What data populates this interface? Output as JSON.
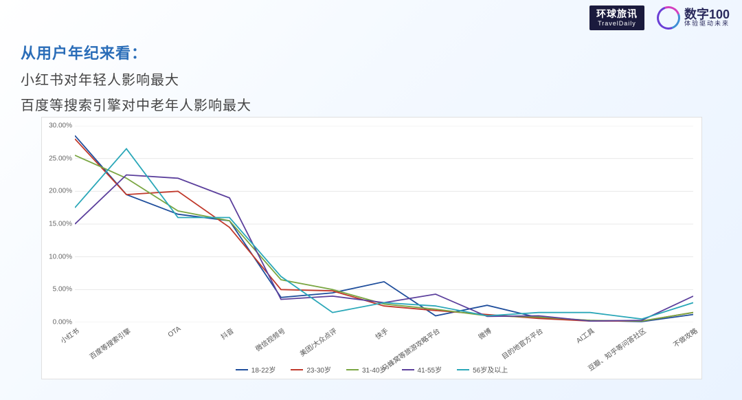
{
  "logos": {
    "traveldaily_cn": "环球旅讯",
    "traveldaily_en": "TravelDaily",
    "digital100_big": "数字100",
    "digital100_small": "体验驱动未来"
  },
  "headline": {
    "line1": "从用户年纪来看：",
    "line2": "小红书对年轻人影响最大",
    "line3": "百度等搜索引擎对中老年人影响最大"
  },
  "chart": {
    "type": "line",
    "background_color": "#ffffff",
    "border_color": "#e0e0e0",
    "grid_color": "#e8e8e8",
    "tick_fontsize": 10,
    "tick_color": "#666666",
    "line_width": 1.8,
    "ylim": [
      0,
      30
    ],
    "ytick_step": 5,
    "ytick_format": "0.00%",
    "yticks": [
      "0.00%",
      "5.00%",
      "10.00%",
      "15.00%",
      "20.00%",
      "25.00%",
      "30.00%"
    ],
    "categories": [
      "小红书",
      "百度等搜索引擎",
      "OTA",
      "抖音",
      "微信视频号",
      "美团/大众点评",
      "快手",
      "马蜂窝等旅游攻略平台",
      "微博",
      "目的地官方平台",
      "AI工具",
      "豆瓣、知乎等问答社区",
      "不做攻略"
    ],
    "xlabel_rotate_deg": -35,
    "series": [
      {
        "name": "18-22岁",
        "color": "#1f4e9c",
        "values": [
          28.5,
          19.5,
          16.5,
          15.5,
          3.8,
          4.5,
          6.2,
          1.0,
          2.6,
          0.7,
          0.3,
          0.1,
          1.2
        ]
      },
      {
        "name": "23-30岁",
        "color": "#c0392b",
        "values": [
          28.0,
          19.5,
          20.0,
          14.5,
          5.0,
          4.8,
          2.5,
          1.8,
          1.2,
          0.6,
          0.2,
          0.2,
          1.5
        ]
      },
      {
        "name": "31-40岁",
        "color": "#7aa642",
        "values": [
          25.5,
          22.0,
          17.0,
          15.5,
          6.5,
          5.0,
          2.8,
          2.0,
          1.0,
          0.8,
          0.3,
          0.2,
          1.5
        ]
      },
      {
        "name": "41-55岁",
        "color": "#5b3f9c",
        "values": [
          15.0,
          22.5,
          22.0,
          19.0,
          3.5,
          4.0,
          3.0,
          4.3,
          0.9,
          1.0,
          0.2,
          0.3,
          4.0
        ]
      },
      {
        "name": "56岁及以上",
        "color": "#2aa7b8",
        "values": [
          17.5,
          26.5,
          16.0,
          16.0,
          7.0,
          1.5,
          3.0,
          2.5,
          1.0,
          1.5,
          1.5,
          0.5,
          3.0
        ]
      }
    ],
    "legend_position": "bottom-center",
    "legend_fontsize": 10
  }
}
